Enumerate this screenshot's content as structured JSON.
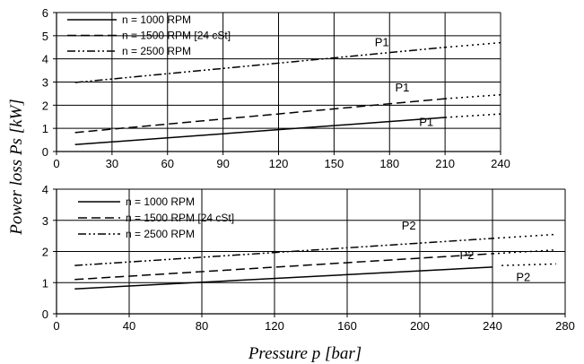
{
  "ylabel": "Power loss Ps [kW]",
  "xlabel": "Pressure p [bar]",
  "chart_data": [
    {
      "type": "line",
      "xlim": [
        0,
        240
      ],
      "ylim": [
        0,
        6
      ],
      "xticks": [
        "0",
        "30",
        "60",
        "90",
        "120",
        "150",
        "180",
        "210",
        "240"
      ],
      "yticks": [
        "0",
        "1",
        "2",
        "3",
        "4",
        "5",
        "6"
      ],
      "grid": true,
      "legend": "top-left",
      "series": [
        {
          "name": "n = 1000 RPM",
          "dash": "solid",
          "x": [
            10,
            210
          ],
          "y": [
            0.3,
            1.47
          ],
          "ext_x": [
            210,
            240
          ],
          "ext_y": [
            1.47,
            1.62
          ]
        },
        {
          "name": "n = 1500 RPM [24 cSt]",
          "dash": "dashed",
          "x": [
            10,
            210
          ],
          "y": [
            0.82,
            2.28
          ],
          "ext_x": [
            210,
            240
          ],
          "ext_y": [
            2.28,
            2.45
          ]
        },
        {
          "name": "n = 2500 RPM",
          "dash": "dashdotdot",
          "x": [
            10,
            210
          ],
          "y": [
            2.98,
            4.5
          ],
          "ext_x": [
            210,
            240
          ],
          "ext_y": [
            4.5,
            4.7
          ]
        }
      ],
      "annotations": [
        {
          "text": "P1",
          "x": 172,
          "y": 4.55
        },
        {
          "text": "P1",
          "x": 183,
          "y": 2.6
        },
        {
          "text": "P1",
          "x": 196,
          "y": 1.1
        }
      ]
    },
    {
      "type": "line",
      "xlim": [
        0,
        280
      ],
      "ylim": [
        0,
        4
      ],
      "xticks": [
        "0",
        "40",
        "80",
        "120",
        "160",
        "200",
        "240",
        "280"
      ],
      "yticks": [
        "0",
        "1",
        "2",
        "3",
        "4"
      ],
      "grid": true,
      "legend": "top-left",
      "series": [
        {
          "name": "n = 1000 RPM",
          "dash": "solid",
          "x": [
            10,
            240
          ],
          "y": [
            0.8,
            1.5
          ],
          "ext_x": [
            245,
            275
          ],
          "ext_y": [
            1.55,
            1.6
          ]
        },
        {
          "name": "n = 1500 RPM [24 cSt]",
          "dash": "dashed",
          "x": [
            10,
            240
          ],
          "y": [
            1.1,
            1.93
          ],
          "ext_x": [
            240,
            275
          ],
          "ext_y": [
            1.93,
            2.05
          ]
        },
        {
          "name": "n = 2500 RPM",
          "dash": "dashdotdot",
          "x": [
            10,
            240
          ],
          "y": [
            1.55,
            2.42
          ],
          "ext_x": [
            240,
            275
          ],
          "ext_y": [
            2.42,
            2.55
          ]
        }
      ],
      "annotations": [
        {
          "text": "P2",
          "x": 190,
          "y": 2.7
        },
        {
          "text": "P2",
          "x": 222,
          "y": 1.75
        },
        {
          "text": "P2",
          "x": 253,
          "y": 1.05
        }
      ]
    }
  ]
}
